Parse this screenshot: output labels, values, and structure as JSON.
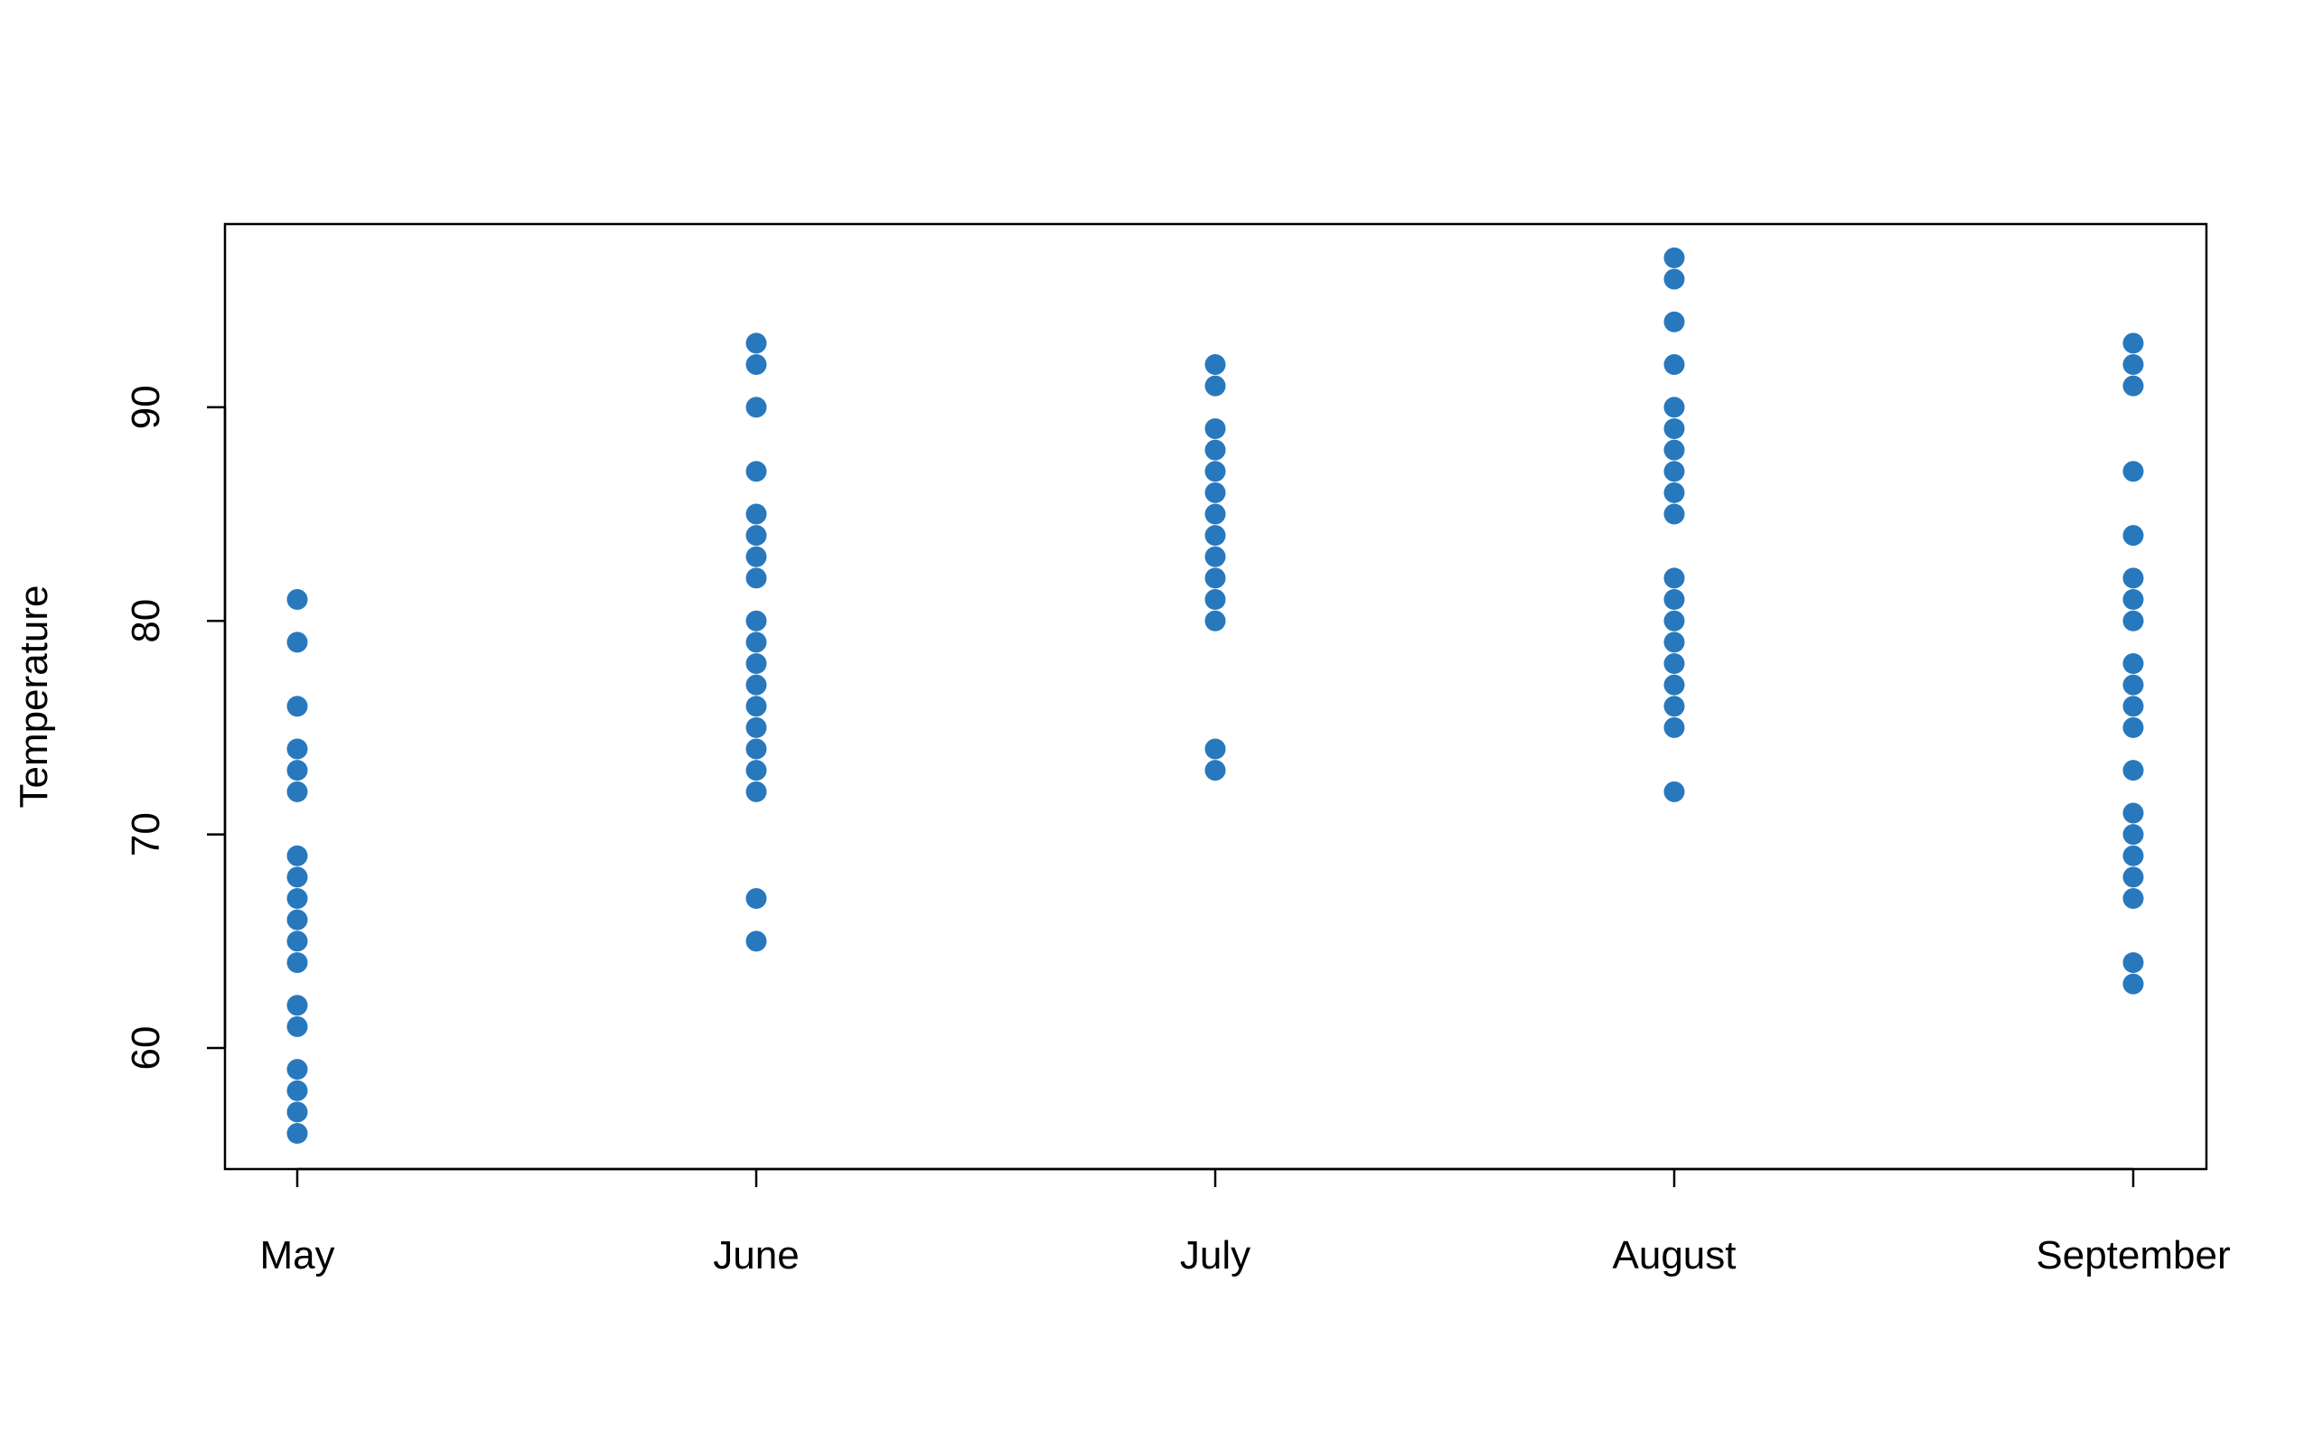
{
  "chart_data": {
    "type": "scatter",
    "title": "",
    "xlabel": "",
    "ylabel": "Temperature",
    "categories": [
      "May",
      "June",
      "July",
      "August",
      "September"
    ],
    "y_ticks": [
      60,
      70,
      80,
      90
    ],
    "ylim": [
      54.5,
      98.5
    ],
    "grid": false,
    "point_color": "#2878BD",
    "series": [
      {
        "values": [
          [
            81,
            79,
            76,
            74,
            73,
            72,
            69,
            68,
            67,
            66,
            65,
            64,
            62,
            61,
            59,
            58,
            57,
            56
          ],
          [
            93,
            92,
            90,
            87,
            85,
            84,
            83,
            82,
            80,
            79,
            78,
            77,
            76,
            75,
            74,
            73,
            72,
            67,
            65
          ],
          [
            92,
            91,
            89,
            88,
            87,
            86,
            85,
            84,
            83,
            82,
            81,
            80,
            74,
            73
          ],
          [
            97,
            96,
            94,
            92,
            90,
            89,
            88,
            87,
            86,
            85,
            82,
            81,
            80,
            79,
            78,
            77,
            76,
            75,
            72
          ],
          [
            93,
            92,
            91,
            87,
            84,
            82,
            81,
            80,
            78,
            77,
            76,
            75,
            73,
            71,
            70,
            69,
            68,
            67,
            64,
            63
          ]
        ]
      }
    ]
  }
}
